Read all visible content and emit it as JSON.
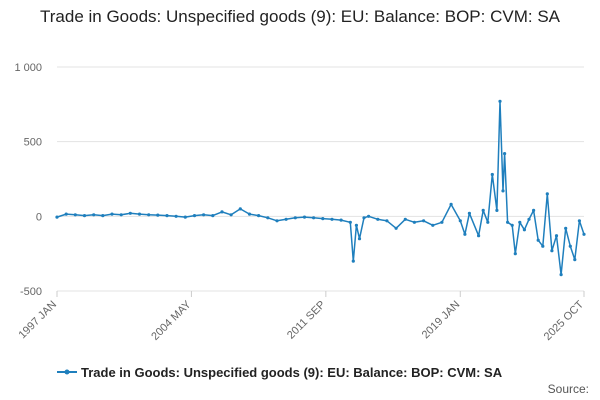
{
  "chart_data": {
    "type": "line",
    "title": "Trade in Goods: Unspecified goods (9): EU: Balance: BOP: CVM: SA",
    "xlabel": "",
    "ylabel": "",
    "ylim": [
      -500,
      1000
    ],
    "y_ticks": [
      -500,
      0,
      500,
      1000
    ],
    "y_tick_labels": [
      "-500",
      "0",
      "500",
      "1 000"
    ],
    "x_range": [
      "1997-01",
      "2025-10"
    ],
    "x_ticks": [
      "1997-01",
      "2004-05",
      "2011-09",
      "2019-01",
      "2025-10"
    ],
    "x_tick_labels": [
      "1997 JAN",
      "2004 MAY",
      "2011 SEP",
      "2019 JAN",
      "2025 OCT"
    ],
    "grid": "horizontal",
    "legend_position": "bottom",
    "color": "#1f7fbd",
    "series": [
      {
        "name": "Trade in Goods: Unspecified goods (9): EU: Balance: BOP: CVM: SA",
        "points": [
          [
            "1997-01",
            -5
          ],
          [
            "1997-07",
            15
          ],
          [
            "1998-01",
            10
          ],
          [
            "1998-07",
            5
          ],
          [
            "1999-01",
            10
          ],
          [
            "1999-07",
            5
          ],
          [
            "2000-01",
            15
          ],
          [
            "2000-07",
            10
          ],
          [
            "2001-01",
            20
          ],
          [
            "2001-07",
            15
          ],
          [
            "2002-01",
            10
          ],
          [
            "2002-07",
            8
          ],
          [
            "2003-01",
            5
          ],
          [
            "2003-07",
            0
          ],
          [
            "2004-01",
            -5
          ],
          [
            "2004-07",
            5
          ],
          [
            "2005-01",
            10
          ],
          [
            "2005-07",
            5
          ],
          [
            "2006-01",
            30
          ],
          [
            "2006-07",
            10
          ],
          [
            "2007-01",
            50
          ],
          [
            "2007-07",
            15
          ],
          [
            "2008-01",
            5
          ],
          [
            "2008-07",
            -10
          ],
          [
            "2009-01",
            -30
          ],
          [
            "2009-07",
            -20
          ],
          [
            "2010-01",
            -10
          ],
          [
            "2010-07",
            -5
          ],
          [
            "2011-01",
            -10
          ],
          [
            "2011-07",
            -15
          ],
          [
            "2012-01",
            -20
          ],
          [
            "2012-07",
            -25
          ],
          [
            "2013-01",
            -40
          ],
          [
            "2013-03",
            -300
          ],
          [
            "2013-05",
            -60
          ],
          [
            "2013-07",
            -150
          ],
          [
            "2013-10",
            -10
          ],
          [
            "2014-01",
            0
          ],
          [
            "2014-07",
            -20
          ],
          [
            "2015-01",
            -30
          ],
          [
            "2015-07",
            -80
          ],
          [
            "2016-01",
            -20
          ],
          [
            "2016-07",
            -40
          ],
          [
            "2017-01",
            -30
          ],
          [
            "2017-07",
            -60
          ],
          [
            "2018-01",
            -40
          ],
          [
            "2018-07",
            80
          ],
          [
            "2019-01",
            -30
          ],
          [
            "2019-04",
            -120
          ],
          [
            "2019-07",
            20
          ],
          [
            "2020-01",
            -130
          ],
          [
            "2020-04",
            40
          ],
          [
            "2020-07",
            -40
          ],
          [
            "2020-10",
            280
          ],
          [
            "2021-01",
            40
          ],
          [
            "2021-03",
            770
          ],
          [
            "2021-05",
            170
          ],
          [
            "2021-06",
            420
          ],
          [
            "2021-08",
            -40
          ],
          [
            "2021-11",
            -60
          ],
          [
            "2022-01",
            -250
          ],
          [
            "2022-04",
            -40
          ],
          [
            "2022-07",
            -90
          ],
          [
            "2022-10",
            -20
          ],
          [
            "2023-01",
            40
          ],
          [
            "2023-04",
            -160
          ],
          [
            "2023-07",
            -200
          ],
          [
            "2023-10",
            150
          ],
          [
            "2024-01",
            -230
          ],
          [
            "2024-04",
            -130
          ],
          [
            "2024-07",
            -390
          ],
          [
            "2024-10",
            -80
          ],
          [
            "2025-01",
            -200
          ],
          [
            "2025-04",
            -290
          ],
          [
            "2025-07",
            -30
          ],
          [
            "2025-10",
            -120
          ]
        ]
      }
    ],
    "source_label": "Source:"
  }
}
